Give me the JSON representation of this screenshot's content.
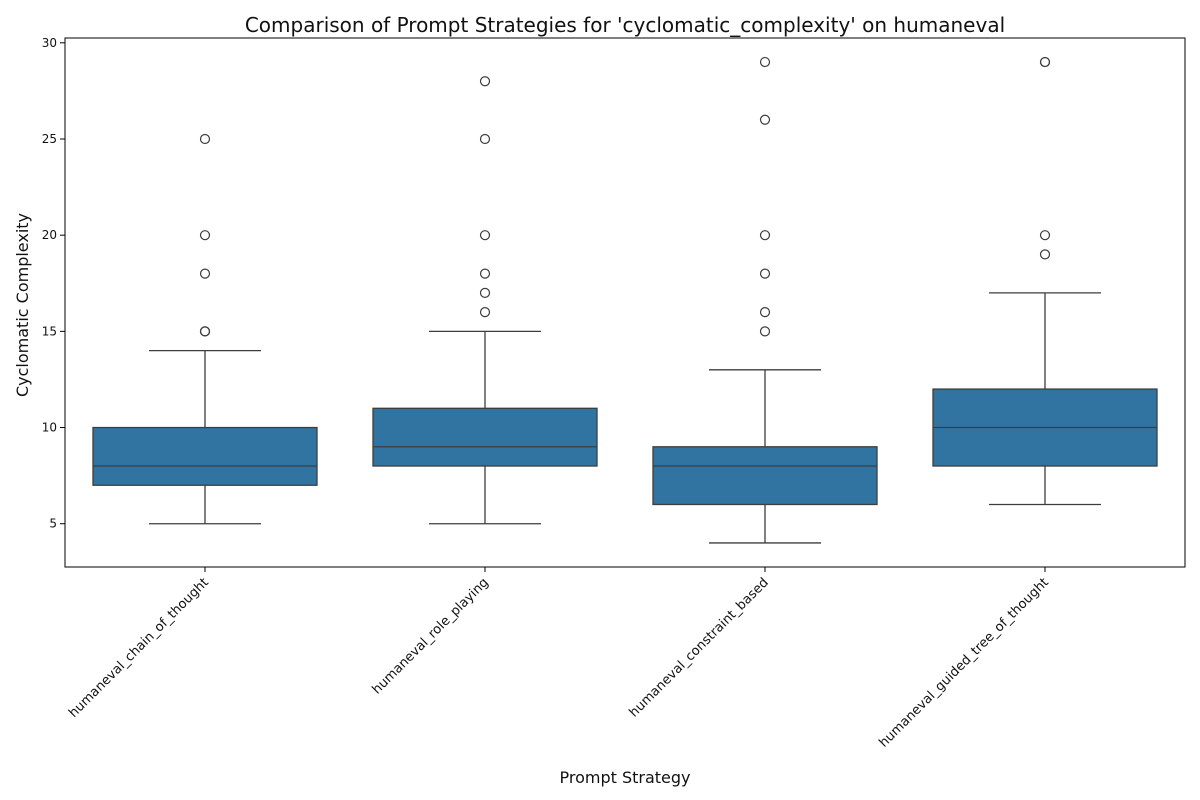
{
  "chart_data": {
    "type": "box",
    "title": "Comparison of Prompt Strategies for 'cyclomatic_complexity' on humaneval",
    "xlabel": "Prompt Strategy",
    "ylabel": "Cyclomatic Complexity",
    "ylim": [
      2.75,
      30.25
    ],
    "yticks": [
      5,
      10,
      15,
      20,
      25,
      30
    ],
    "grid": false,
    "legend": "none",
    "box_color": "#3274a1",
    "line_color": "#3d3d3d",
    "categories": [
      "humaneval_chain_of_thought",
      "humaneval_role_playing",
      "humaneval_constraint_based",
      "humaneval_guided_tree_of_thought"
    ],
    "boxes": [
      {
        "whisker_low": 5,
        "q1": 7,
        "median": 8,
        "q3": 10,
        "whisker_high": 14,
        "outliers": [
          15,
          15,
          18,
          20,
          25
        ]
      },
      {
        "whisker_low": 5,
        "q1": 8,
        "median": 9,
        "q3": 11,
        "whisker_high": 15,
        "outliers": [
          16,
          17,
          18,
          20,
          25,
          28
        ]
      },
      {
        "whisker_low": 4,
        "q1": 6,
        "median": 8,
        "q3": 9,
        "whisker_high": 13,
        "outliers": [
          15,
          16,
          18,
          20,
          26,
          29
        ]
      },
      {
        "whisker_low": 6,
        "q1": 8,
        "median": 10,
        "q3": 12,
        "whisker_high": 17,
        "outliers": [
          19,
          20,
          29,
          29
        ]
      }
    ]
  }
}
